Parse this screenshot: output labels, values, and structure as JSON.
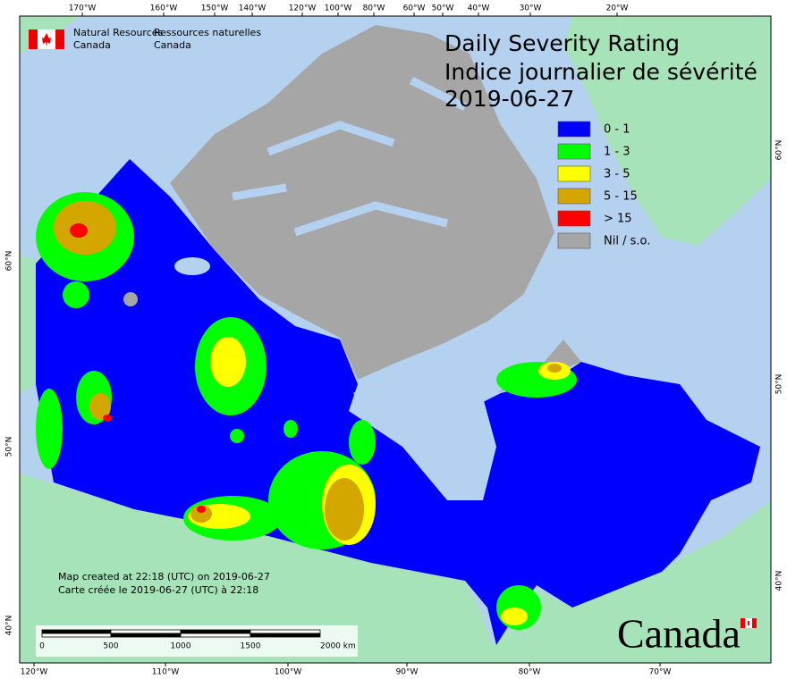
{
  "header": {
    "org_en": [
      "Natural Resources",
      "Canada"
    ],
    "org_fr": [
      "Ressources naturelles",
      "Canada"
    ]
  },
  "title": {
    "en": "Daily Severity Rating",
    "fr": "Indice journalier de sévérité",
    "date": "2019-06-27"
  },
  "legend": [
    {
      "label": "0 - 1",
      "color": "#0000ff"
    },
    {
      "label": "1 - 3",
      "color": "#00ff00"
    },
    {
      "label": "3 - 5",
      "color": "#ffff00"
    },
    {
      "label": "5 - 15",
      "color": "#d4a600"
    },
    {
      "label": "> 15",
      "color": "#ff0000"
    },
    {
      "label": "Nil / s.o.",
      "color": "#a6a6a6"
    }
  ],
  "graticule": {
    "top": [
      "170°W",
      "160°W",
      "150°W",
      "140°W",
      "120°W",
      "100°W",
      "80°W",
      "60°W",
      "50°W",
      "40°W",
      "30°W",
      "20°W"
    ],
    "bottom": [
      "120°W",
      "110°W",
      "100°W",
      "90°W",
      "80°W",
      "70°W"
    ],
    "left": [
      "60°N",
      "50°N",
      "40°N"
    ],
    "right": [
      "60°N",
      "50°N",
      "40°N"
    ]
  },
  "scale_bar": [
    "0",
    "500",
    "1000",
    "1500",
    "2000 km"
  ],
  "notes": [
    "Map created at 22:18 (UTC) on 2019-06-27",
    "Carte créée le 2019-06-27 (UTC) à 22:18"
  ],
  "wordmark": "Canada"
}
